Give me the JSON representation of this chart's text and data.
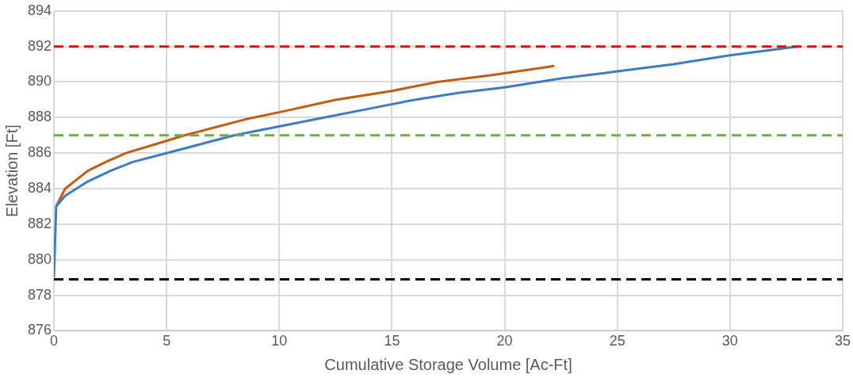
{
  "chart_data": {
    "type": "line",
    "xlabel": "Cumulative Storage Volume [Ac-Ft]",
    "ylabel": "Elevation [Ft]",
    "xlim": [
      0,
      35
    ],
    "xticks": [
      0,
      5,
      10,
      15,
      20,
      25,
      30,
      35
    ],
    "ylim": [
      876,
      894
    ],
    "yticks": [
      876,
      878,
      880,
      882,
      884,
      886,
      888,
      890,
      892,
      894
    ],
    "grid": true,
    "legend": false,
    "marker": "none",
    "line_style": "solid",
    "series": [
      {
        "color": "#3b7dc4",
        "x": [
          0,
          0.1,
          0.5,
          1,
          1.5,
          2.5,
          3.5,
          5,
          6.5,
          8,
          10,
          12,
          14,
          16,
          18,
          20,
          22.5,
          25,
          27.5,
          30,
          33
        ],
        "values": [
          879,
          883,
          883.6,
          884,
          884.4,
          885,
          885.5,
          886,
          886.5,
          887,
          887.5,
          888,
          888.5,
          889,
          889.4,
          889.7,
          890.2,
          890.6,
          891,
          891.5,
          892
        ]
      },
      {
        "color": "#c55a11",
        "x": [
          0.1,
          0.5,
          1,
          1.5,
          2.3,
          3.2,
          4.5,
          5.8,
          7,
          8.5,
          10,
          12.5,
          15,
          17,
          19.5,
          22.2
        ],
        "values": [
          883,
          884,
          884.5,
          885,
          885.5,
          886,
          886.5,
          887,
          887.4,
          887.9,
          888.3,
          889,
          889.5,
          890,
          890.4,
          890.9
        ]
      }
    ],
    "ref_lines": [
      {
        "axis": "y",
        "value": 892,
        "color": "#ff0000",
        "line_style": "dashed"
      },
      {
        "axis": "y",
        "value": 887,
        "color": "#70ad47",
        "line_style": "dashed"
      },
      {
        "axis": "y",
        "value": 878.9,
        "color": "#000000",
        "line_style": "dashed"
      }
    ]
  }
}
